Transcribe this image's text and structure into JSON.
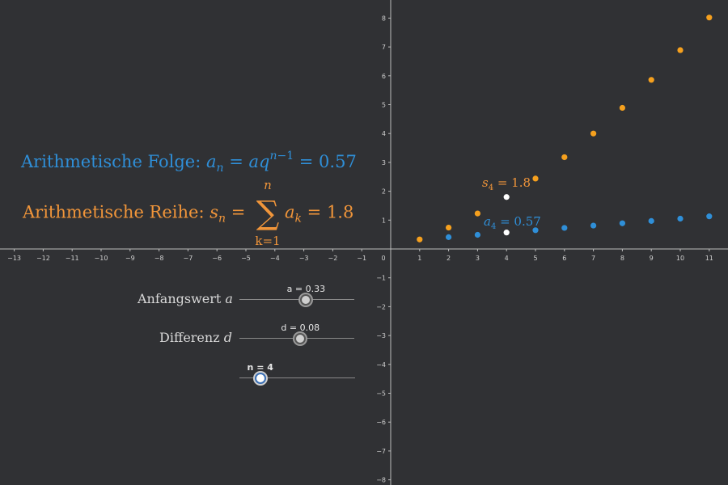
{
  "chart_data": {
    "type": "scatter",
    "xlim": [
      -13.3,
      11.8
    ],
    "ylim": [
      -8.3,
      8.5
    ],
    "x_ticks": [
      -13,
      -12,
      -11,
      -10,
      -9,
      -8,
      -7,
      -6,
      -5,
      -4,
      -3,
      -2,
      -1,
      0,
      1,
      2,
      3,
      4,
      5,
      6,
      7,
      8,
      9,
      10,
      11
    ],
    "y_ticks": [
      -8,
      -7,
      -6,
      -5,
      -4,
      -3,
      -2,
      -1,
      1,
      2,
      3,
      4,
      5,
      6,
      7,
      8
    ],
    "series": [
      {
        "color": "#f5a01e",
        "x": [
          1,
          2,
          3,
          5,
          6,
          7,
          8,
          9,
          10,
          11
        ],
        "y": [
          0.33,
          0.74,
          1.23,
          2.44,
          3.18,
          4.0,
          4.89,
          5.86,
          6.89,
          8.02
        ]
      },
      {
        "color": "#2f8fd8",
        "x": [
          2,
          3,
          5,
          6,
          7,
          8,
          9,
          10,
          11
        ],
        "y": [
          0.41,
          0.49,
          0.65,
          0.73,
          0.81,
          0.89,
          0.97,
          1.05,
          1.13
        ]
      },
      {
        "color": "#ffffff",
        "x": [
          4,
          4
        ],
        "y": [
          1.8,
          0.57
        ]
      }
    ],
    "annotations": [
      {
        "text_var": "s",
        "text_sub": "4",
        "text_rest": " = 1.8",
        "color": "#f0953a"
      },
      {
        "text_var": "a",
        "text_sub": "4",
        "text_rest": " = 0.57",
        "color": "#2f8fd8"
      }
    ]
  },
  "formulas": {
    "folge": {
      "label": "Arithmetische Folge: ",
      "value": " = 0.57"
    },
    "reihe": {
      "label": "Arithmetische Reihe: ",
      "value": " = 1.8",
      "sum_top": "n",
      "sum_bottom": "k=1"
    }
  },
  "sliders": {
    "a": {
      "label_text": "Anfangswert ",
      "label_var": "a",
      "value_text": "a = 0.33",
      "fraction": 0.58
    },
    "d": {
      "label_text": "Differenz ",
      "label_var": "d",
      "value_text": "d = 0.08",
      "fraction": 0.53
    },
    "n": {
      "value_text": "n = 4",
      "fraction": 0.18
    }
  }
}
